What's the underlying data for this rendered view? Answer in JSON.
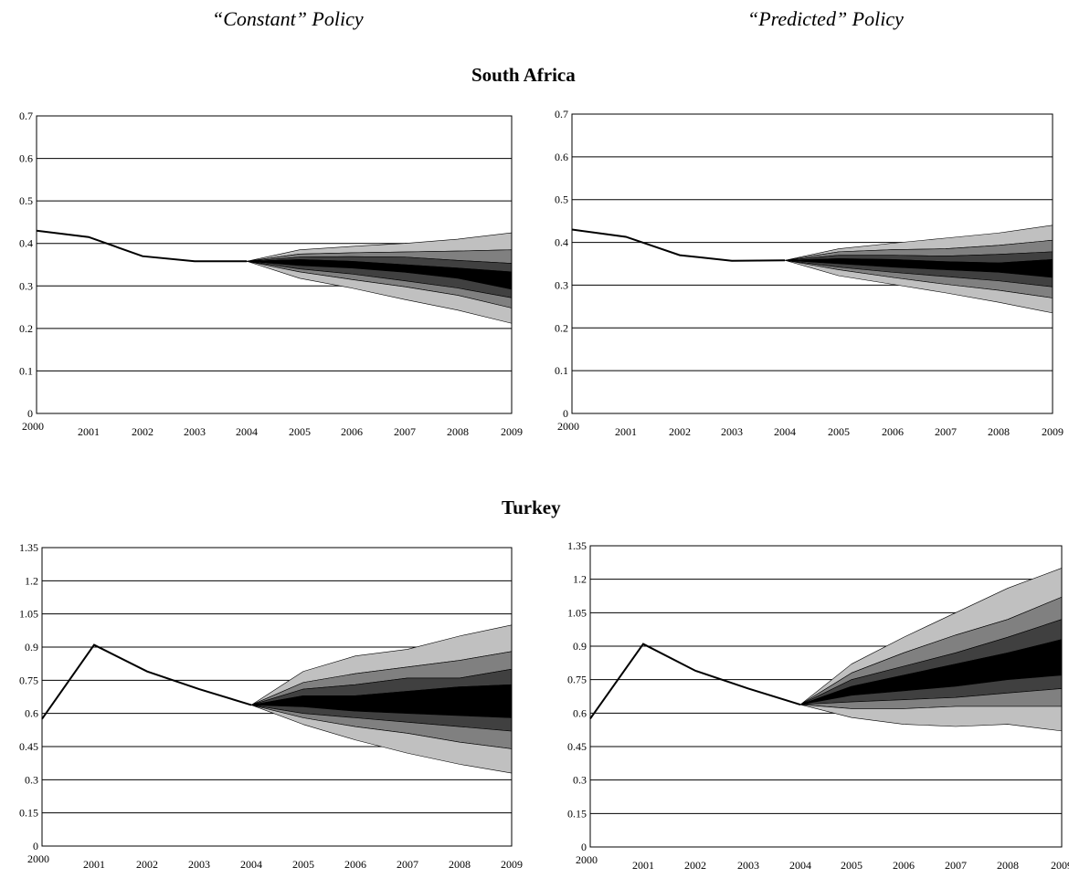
{
  "headers": {
    "left": "“Constant” Policy",
    "right": "“Predicted” Policy"
  },
  "sections": {
    "south_africa": "South Africa",
    "turkey": "Turkey"
  },
  "colors": {
    "band_outer": "#c0c0c0",
    "band_2": "#808080",
    "band_3": "#404040",
    "band_inner": "#000000",
    "line": "#000000",
    "grid": "#000000"
  },
  "chart_data": [
    {
      "id": "sa-constant",
      "type": "area",
      "section": "South Africa",
      "policy": "Constant",
      "x": [
        2000,
        2001,
        2002,
        2003,
        2004,
        2005,
        2006,
        2007,
        2008,
        2009
      ],
      "xticks": [
        "2000",
        "2001",
        "2002",
        "2003",
        "2004",
        "2005",
        "2006",
        "2007",
        "2008",
        "2009"
      ],
      "yticks": [
        "0",
        "0.1",
        "0.2",
        "0.3",
        "0.4",
        "0.5",
        "0.6",
        "0.7"
      ],
      "ylim": [
        0,
        0.7
      ],
      "grid": true,
      "history": [
        0.43,
        0.415,
        0.37,
        0.358,
        0.358
      ],
      "fan_start": 2004,
      "fan_bounds": [
        [
          0.358,
          0.385,
          0.393,
          0.4,
          0.41,
          0.425
        ],
        [
          0.358,
          0.375,
          0.378,
          0.38,
          0.382,
          0.385
        ],
        [
          0.358,
          0.368,
          0.369,
          0.368,
          0.36,
          0.353
        ],
        [
          0.358,
          0.362,
          0.358,
          0.35,
          0.342,
          0.333
        ],
        [
          0.358,
          0.348,
          0.342,
          0.332,
          0.318,
          0.292
        ],
        [
          0.358,
          0.34,
          0.328,
          0.312,
          0.295,
          0.272
        ],
        [
          0.358,
          0.333,
          0.315,
          0.298,
          0.278,
          0.248
        ],
        [
          0.358,
          0.318,
          0.295,
          0.268,
          0.243,
          0.212
        ]
      ]
    },
    {
      "id": "sa-predicted",
      "type": "area",
      "section": "South Africa",
      "policy": "Predicted",
      "x": [
        2000,
        2001,
        2002,
        2003,
        2004,
        2005,
        2006,
        2007,
        2008,
        2009
      ],
      "xticks": [
        "2000",
        "2001",
        "2002",
        "2003",
        "2004",
        "2005",
        "2006",
        "2007",
        "2008",
        "2009"
      ],
      "yticks": [
        "0",
        "0.1",
        "0.2",
        "0.3",
        "0.4",
        "0.5",
        "0.6",
        "0.7"
      ],
      "ylim": [
        0,
        0.7
      ],
      "grid": true,
      "history": [
        0.43,
        0.413,
        0.37,
        0.357,
        0.358
      ],
      "fan_start": 2004,
      "fan_bounds": [
        [
          0.358,
          0.385,
          0.398,
          0.41,
          0.422,
          0.44
        ],
        [
          0.358,
          0.378,
          0.383,
          0.385,
          0.393,
          0.405
        ],
        [
          0.358,
          0.37,
          0.37,
          0.368,
          0.372,
          0.378
        ],
        [
          0.358,
          0.362,
          0.36,
          0.355,
          0.352,
          0.36
        ],
        [
          0.358,
          0.35,
          0.342,
          0.336,
          0.33,
          0.318
        ],
        [
          0.358,
          0.342,
          0.33,
          0.32,
          0.31,
          0.296
        ],
        [
          0.358,
          0.336,
          0.318,
          0.302,
          0.288,
          0.27
        ],
        [
          0.358,
          0.322,
          0.302,
          0.282,
          0.26,
          0.235
        ]
      ]
    },
    {
      "id": "tr-constant",
      "type": "area",
      "section": "Turkey",
      "policy": "Constant",
      "x": [
        2000,
        2001,
        2002,
        2003,
        2004,
        2005,
        2006,
        2007,
        2008,
        2009
      ],
      "xticks": [
        "2000",
        "2001",
        "2002",
        "2003",
        "2004",
        "2005",
        "2006",
        "2007",
        "2008",
        "2009"
      ],
      "yticks": [
        "0",
        "0.15",
        "0.3",
        "0.45",
        "0.6",
        "0.75",
        "0.9",
        "1.05",
        "1.2",
        "1.35"
      ],
      "ylim": [
        0,
        1.35
      ],
      "grid": true,
      "history": [
        0.575,
        0.91,
        0.79,
        0.71,
        0.638
      ],
      "fan_start": 2004,
      "fan_bounds": [
        [
          0.638,
          0.79,
          0.86,
          0.89,
          0.95,
          1.0
        ],
        [
          0.638,
          0.74,
          0.78,
          0.81,
          0.84,
          0.88
        ],
        [
          0.638,
          0.71,
          0.73,
          0.76,
          0.76,
          0.8
        ],
        [
          0.638,
          0.68,
          0.68,
          0.7,
          0.72,
          0.73
        ],
        [
          0.638,
          0.63,
          0.61,
          0.6,
          0.59,
          0.58
        ],
        [
          0.638,
          0.6,
          0.58,
          0.56,
          0.54,
          0.52
        ],
        [
          0.638,
          0.58,
          0.54,
          0.51,
          0.47,
          0.44
        ],
        [
          0.638,
          0.55,
          0.48,
          0.42,
          0.37,
          0.33
        ]
      ]
    },
    {
      "id": "tr-predicted",
      "type": "area",
      "section": "Turkey",
      "policy": "Predicted",
      "x": [
        2000,
        2001,
        2002,
        2003,
        2004,
        2005,
        2006,
        2007,
        2008,
        2009
      ],
      "xticks": [
        "2000",
        "2001",
        "2002",
        "2003",
        "2004",
        "2005",
        "2006",
        "2007",
        "2008",
        "2009"
      ],
      "yticks": [
        "0",
        "0.15",
        "0.3",
        "0.45",
        "0.6",
        "0.75",
        "0.9",
        "1.05",
        "1.2",
        "1.35"
      ],
      "ylim": [
        0,
        1.35
      ],
      "grid": true,
      "history": [
        0.575,
        0.91,
        0.79,
        0.71,
        0.638
      ],
      "fan_start": 2004,
      "fan_bounds": [
        [
          0.638,
          0.82,
          0.94,
          1.05,
          1.16,
          1.25
        ],
        [
          0.638,
          0.78,
          0.87,
          0.95,
          1.02,
          1.12
        ],
        [
          0.638,
          0.75,
          0.81,
          0.87,
          0.94,
          1.02
        ],
        [
          0.638,
          0.72,
          0.77,
          0.82,
          0.87,
          0.93
        ],
        [
          0.638,
          0.68,
          0.7,
          0.72,
          0.75,
          0.77
        ],
        [
          0.638,
          0.65,
          0.66,
          0.67,
          0.69,
          0.71
        ],
        [
          0.638,
          0.62,
          0.62,
          0.63,
          0.63,
          0.63
        ],
        [
          0.638,
          0.58,
          0.55,
          0.54,
          0.55,
          0.52
        ]
      ]
    }
  ]
}
